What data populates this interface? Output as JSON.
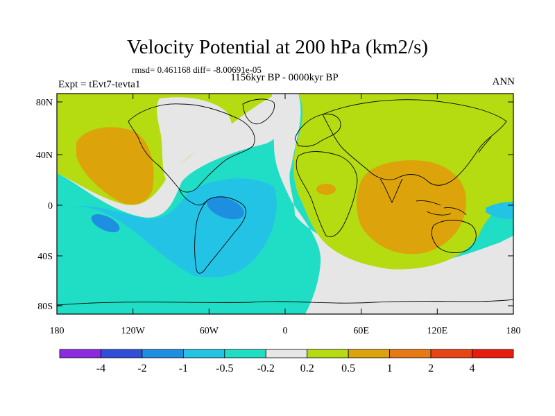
{
  "title": "Velocity Potential at 200 hPa (km2/s)",
  "stats": "rmsd= 0.461168 diff= -8.00691e-05",
  "subtitle": "1156kyr BP - 0000kyr BP",
  "expt": "Expt = tEvt7-tevta1",
  "season": "ANN",
  "axes": {
    "lat_labels": [
      "80N",
      "40N",
      "0",
      "40S",
      "80S"
    ],
    "lon_labels": [
      "180",
      "120W",
      "60W",
      "0",
      "60E",
      "120E",
      "180"
    ]
  },
  "colorbar": {
    "labels": [
      "-4",
      "-2",
      "-1",
      "-0.5",
      "-0.2",
      "0.2",
      "0.5",
      "1",
      "2",
      "4"
    ],
    "colors": [
      "#8a2be2",
      "#2f4fd8",
      "#1e8fe0",
      "#23c3e6",
      "#20dec6",
      "#e6e6e6",
      "#b4dc10",
      "#dca40a",
      "#e87a16",
      "#e84414",
      "#e81c0c"
    ]
  },
  "palette": {
    "neutral": "#e6e6e6",
    "cyan": "#20dec6",
    "light_blue": "#23c3e6",
    "blue": "#1e8fe0",
    "green": "#b4dc10",
    "orange": "#dca40a"
  }
}
